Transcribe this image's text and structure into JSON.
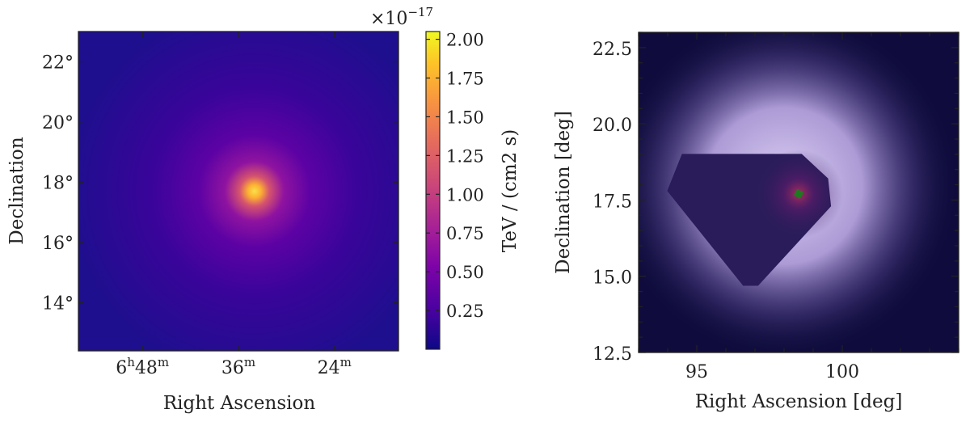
{
  "chart_data": [
    {
      "type": "heatmap",
      "xlabel": "Right Ascension",
      "ylabel": "Declination",
      "x_tick_labels": [
        {
          "value": 102.0,
          "hours": "6",
          "minutes": "48"
        },
        {
          "value": 99.0,
          "hours": "",
          "minutes": "36"
        },
        {
          "value": 96.0,
          "hours": "",
          "minutes": "24"
        }
      ],
      "y_tick_labels": [
        {
          "value": 14,
          "text": "14°"
        },
        {
          "value": 16,
          "text": "16°"
        },
        {
          "value": 18,
          "text": "18°"
        },
        {
          "value": 20,
          "text": "20°"
        },
        {
          "value": 22,
          "text": "22°"
        }
      ],
      "xlim": [
        104.0,
        94.0
      ],
      "ylim": [
        12.4,
        23.0
      ],
      "source_center": {
        "ra": 98.5,
        "dec": 17.7
      },
      "colormap": "plasma",
      "colorbar": {
        "label": "TeV / (cm2 s)",
        "multiplier": "×10",
        "exponent": "−17",
        "range": [
          0.0,
          2.05
        ],
        "ticks": [
          "0.25",
          "0.50",
          "0.75",
          "1.00",
          "1.25",
          "1.50",
          "1.75",
          "2.00"
        ],
        "tick_values": [
          0.25,
          0.5,
          0.75,
          1.0,
          1.25,
          1.5,
          1.75,
          2.0
        ]
      }
    },
    {
      "type": "heatmap",
      "xlabel": "Right Ascension [deg]",
      "ylabel": "Declination [deg]",
      "xlim": [
        93.0,
        104.0
      ],
      "ylim": [
        12.5,
        23.0
      ],
      "x_ticks": [
        95,
        100
      ],
      "x_tick_labels": [
        "95",
        "100"
      ],
      "y_ticks": [
        12.5,
        15.0,
        17.5,
        20.0,
        22.5
      ],
      "y_tick_labels": [
        "12.5",
        "15.0",
        "17.5",
        "20.0",
        "22.5"
      ],
      "source_center": {
        "ra": 98.5,
        "dec": 17.7
      },
      "background_color": "#0f0c3d",
      "halo_color": "#c8b4f0",
      "mask_color": "#2a1c5a",
      "marker_color": "#1e7a1e",
      "mask_polygon": [
        [
          94.5,
          19.0
        ],
        [
          98.6,
          19.0
        ],
        [
          99.5,
          18.2
        ],
        [
          99.6,
          17.3
        ],
        [
          97.1,
          14.7
        ],
        [
          96.6,
          14.7
        ],
        [
          94.0,
          17.8
        ]
      ]
    }
  ]
}
